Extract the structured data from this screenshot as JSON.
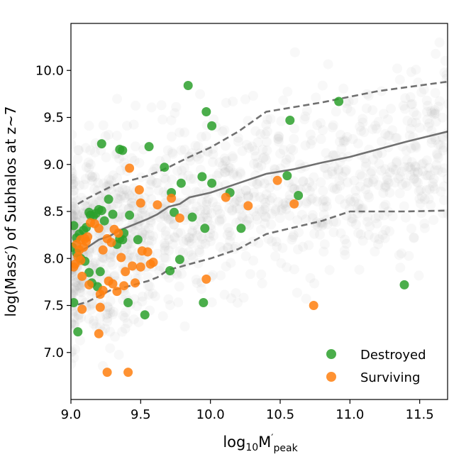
{
  "chart_data": {
    "type": "scatter",
    "title": "",
    "xlabel": {
      "prefix": "log",
      "sub": "10",
      "main": "M",
      "prime": "′",
      "main_sub": "peak"
    },
    "ylabel": "log(Mass′) of Subhalos at z~7",
    "xlim": [
      9.0,
      11.7
    ],
    "ylim": [
      6.5,
      10.5
    ],
    "xticks": [
      "9.0",
      "9.5",
      "10.0",
      "10.5",
      "11.0",
      "11.5"
    ],
    "yticks": [
      "7.0",
      "7.5",
      "8.0",
      "8.5",
      "9.0",
      "9.5",
      "10.0"
    ],
    "legend": {
      "position": "bottom-right",
      "entries": [
        "Destroyed",
        "Surviving"
      ]
    },
    "colors": {
      "destroyed": "#2ca02c",
      "surviving": "#ff7f0e",
      "background": "#a0a0a0",
      "line": "#707070"
    },
    "series": [
      {
        "name": "Destroyed",
        "x": [
          9.84,
          9.97,
          10.01,
          10.57,
          10.92,
          9.22,
          9.35,
          9.37,
          9.56,
          9.67,
          9.72,
          9.79,
          9.94,
          10.01,
          10.14,
          10.22,
          10.55,
          10.63,
          9.74,
          9.87,
          9.96,
          9.02,
          9.04,
          9.06,
          9.09,
          9.11,
          9.13,
          9.14,
          9.16,
          9.18,
          9.2,
          9.22,
          9.24,
          9.27,
          9.3,
          9.33,
          9.35,
          9.37,
          9.38,
          9.42,
          9.48,
          9.01,
          9.04,
          9.07,
          9.1,
          9.13,
          9.15,
          9.19,
          9.21,
          9.78,
          9.71,
          9.41,
          9.53,
          9.02,
          9.05,
          9.95,
          11.39
        ],
        "y": [
          9.84,
          9.56,
          9.41,
          9.47,
          9.67,
          9.22,
          9.16,
          9.15,
          9.19,
          8.97,
          8.7,
          8.8,
          8.87,
          8.8,
          8.7,
          8.32,
          8.88,
          8.67,
          8.49,
          8.44,
          8.32,
          8.35,
          8.22,
          8.26,
          8.3,
          8.33,
          8.49,
          8.46,
          8.45,
          8.48,
          8.52,
          8.51,
          8.4,
          8.63,
          8.47,
          8.15,
          8.21,
          8.2,
          8.27,
          8.46,
          8.2,
          8.12,
          8.06,
          8.0,
          7.97,
          7.85,
          7.74,
          7.7,
          7.86,
          7.99,
          7.87,
          7.53,
          7.4,
          7.53,
          7.22,
          7.53,
          7.72
        ]
      },
      {
        "name": "Surviving",
        "x": [
          9.42,
          9.49,
          9.5,
          9.62,
          9.72,
          9.78,
          10.11,
          10.27,
          10.48,
          10.6,
          10.74,
          9.04,
          9.06,
          9.07,
          9.09,
          9.1,
          9.11,
          9.12,
          9.14,
          9.17,
          9.2,
          9.23,
          9.26,
          9.29,
          9.31,
          9.34,
          9.36,
          9.39,
          9.44,
          9.51,
          9.55,
          9.59,
          9.02,
          9.03,
          9.05,
          9.07,
          9.08,
          9.13,
          9.21,
          9.23,
          9.27,
          9.3,
          9.33,
          9.38,
          9.46,
          9.5,
          9.57,
          9.97,
          9.21,
          9.08,
          9.2,
          9.26,
          9.41
        ],
        "y": [
          8.96,
          8.73,
          8.59,
          8.57,
          8.64,
          8.43,
          8.65,
          8.56,
          8.83,
          8.58,
          7.5,
          8.15,
          8.09,
          8.2,
          8.12,
          8.21,
          8.18,
          8.23,
          8.38,
          8.37,
          8.32,
          8.09,
          8.21,
          8.17,
          8.31,
          8.27,
          8.01,
          7.86,
          7.92,
          8.08,
          8.07,
          7.96,
          7.91,
          7.94,
          8.02,
          7.98,
          7.81,
          7.72,
          7.62,
          7.66,
          7.76,
          7.73,
          7.65,
          7.71,
          7.74,
          7.91,
          7.94,
          7.78,
          7.48,
          7.46,
          7.2,
          6.79,
          6.79
        ]
      }
    ],
    "lines": [
      {
        "name": "median",
        "style": "solid",
        "x": [
          9.05,
          9.12,
          9.2,
          9.28,
          9.35,
          9.45,
          9.55,
          9.62,
          9.7,
          9.78,
          9.85,
          10.0,
          10.2,
          10.4,
          10.6,
          10.8,
          11.0,
          11.2,
          11.4,
          11.7
        ],
        "y": [
          8.07,
          8.12,
          8.2,
          8.24,
          8.3,
          8.36,
          8.42,
          8.47,
          8.55,
          8.58,
          8.65,
          8.7,
          8.8,
          8.9,
          8.95,
          9.02,
          9.08,
          9.16,
          9.24,
          9.35
        ]
      },
      {
        "name": "upper",
        "style": "dashed",
        "x": [
          9.05,
          9.12,
          9.2,
          9.28,
          9.35,
          9.45,
          9.55,
          9.62,
          9.7,
          9.78,
          9.85,
          10.0,
          10.2,
          10.4,
          10.6,
          10.8,
          11.0,
          11.2,
          11.4,
          11.7
        ],
        "y": [
          8.58,
          8.64,
          8.7,
          8.76,
          8.8,
          8.84,
          8.88,
          8.92,
          8.97,
          9.03,
          9.08,
          9.18,
          9.35,
          9.56,
          9.61,
          9.66,
          9.72,
          9.78,
          9.82,
          9.88
        ]
      },
      {
        "name": "lower",
        "style": "dashed",
        "x": [
          9.05,
          9.12,
          9.2,
          9.28,
          9.35,
          9.45,
          9.55,
          9.62,
          9.7,
          9.78,
          9.85,
          10.0,
          10.2,
          10.4,
          10.6,
          10.8,
          11.0,
          11.2,
          11.4,
          11.7
        ],
        "y": [
          7.51,
          7.54,
          7.6,
          7.66,
          7.68,
          7.72,
          7.76,
          7.8,
          7.88,
          7.91,
          7.94,
          8.0,
          8.1,
          8.26,
          8.33,
          8.4,
          8.5,
          8.5,
          8.5,
          8.51
        ]
      }
    ]
  }
}
